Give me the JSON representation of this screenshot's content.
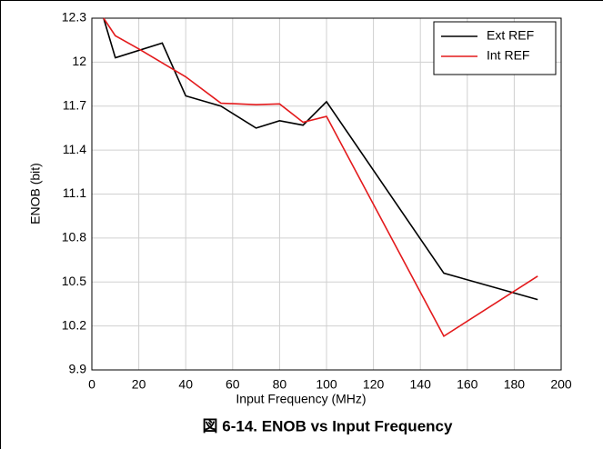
{
  "chart_data": {
    "type": "line",
    "caption": "図 6-14. ENOB vs Input Frequency",
    "xlabel": "Input Frequency (MHz)",
    "ylabel": "ENOB (bit)",
    "series": [
      {
        "name": "Ext REF",
        "color": "#000000",
        "x": [
          5,
          10,
          30,
          40,
          55,
          70,
          80,
          90,
          100,
          150,
          190
        ],
        "values": [
          12.3,
          12.03,
          12.13,
          11.77,
          11.7,
          11.55,
          11.6,
          11.57,
          11.73,
          10.56,
          10.38
        ]
      },
      {
        "name": "Int REF",
        "color": "#e31a1c",
        "x": [
          5,
          10,
          20,
          40,
          55,
          70,
          80,
          90,
          100,
          150,
          190
        ],
        "values": [
          12.3,
          12.18,
          12.09,
          11.9,
          11.72,
          11.71,
          11.715,
          11.59,
          11.63,
          10.13,
          10.54
        ]
      }
    ],
    "xlim": [
      0,
      200
    ],
    "xticks": [
      0,
      20,
      40,
      60,
      80,
      100,
      120,
      140,
      160,
      180,
      200
    ],
    "ylim": [
      9.9,
      12.3
    ],
    "yticks": [
      9.9,
      10.2,
      10.5,
      10.8,
      11.1,
      11.4,
      11.7,
      12,
      12.3
    ],
    "grid": true,
    "legend": "top-right"
  }
}
